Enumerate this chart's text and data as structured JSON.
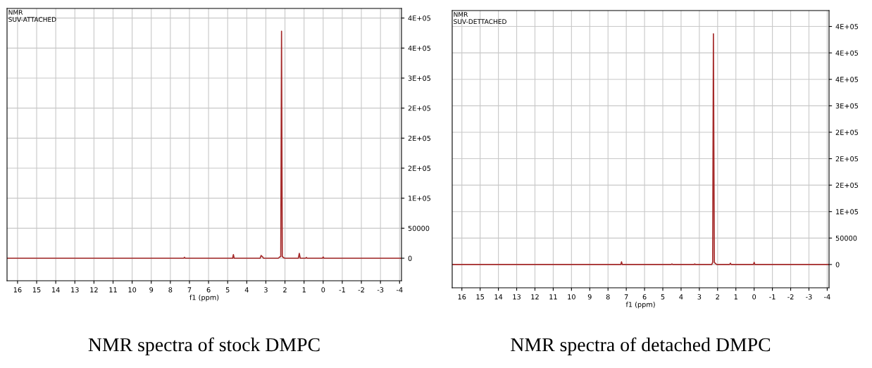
{
  "chart_data": [
    {
      "type": "line",
      "title": "NMR",
      "subtitle": "SUV-ATTACHED",
      "xlabel": "f1 (ppm)",
      "annotations": [
        "NMR spectra of stock DMPC"
      ],
      "series": [
        {
          "color": "#a52a2a",
          "x": [
            16.55,
            7.3,
            7.26,
            7.22,
            4.74,
            4.7,
            4.66,
            3.3,
            3.25,
            3.18,
            3.12,
            2.35,
            2.28,
            2.22,
            2.18,
            2.14,
            2.08,
            2.0,
            1.3,
            1.25,
            1.2,
            0.92,
            0.88,
            0.84,
            0.04,
            0.0,
            -0.04,
            -4.1
          ],
          "values": [
            0,
            0,
            1500,
            0,
            0,
            6000,
            0,
            0,
            4500,
            2500,
            0,
            0,
            2000,
            3000,
            378000,
            3000,
            1000,
            0,
            0,
            8000,
            0,
            0,
            1200,
            0,
            0,
            2000,
            0,
            0
          ]
        }
      ],
      "xlim": [
        16.55,
        -4.1
      ],
      "xticks": [
        16,
        15,
        14,
        13,
        12,
        11,
        10,
        9,
        8,
        7,
        6,
        5,
        4,
        3,
        2,
        1,
        0,
        -1,
        -2,
        -3,
        -4
      ],
      "ylim": [
        -37500,
        416000
      ],
      "yticks": [
        0,
        {
          "value": 50000,
          "label": "50000"
        },
        {
          "value": 100000,
          "label": "1E+05"
        },
        {
          "value": 150000,
          "label": "2E+05"
        },
        {
          "value": 200000,
          "label": "2E+05"
        },
        {
          "value": 250000,
          "label": "2E+05"
        },
        {
          "value": 300000,
          "label": "3E+05"
        },
        {
          "value": 350000,
          "label": "4E+05"
        },
        {
          "value": 400000,
          "label": "4E+05"
        }
      ],
      "grid": true,
      "marker": "none",
      "line_style": "solid"
    },
    {
      "type": "line",
      "title": "NMR",
      "subtitle": "SUV-DETTACHED",
      "xlabel": "f1 (ppm)",
      "annotations": [
        "NMR spectra of detached DMPC"
      ],
      "series": [
        {
          "color": "#a52a2a",
          "x": [
            16.53,
            7.3,
            7.26,
            7.22,
            4.54,
            4.5,
            4.46,
            3.28,
            3.25,
            3.22,
            2.32,
            2.27,
            2.23,
            2.18,
            2.1,
            2.05,
            1.34,
            1.3,
            1.26,
            0.04,
            0.0,
            -0.04,
            -4.1
          ],
          "values": [
            0,
            0,
            5000,
            0,
            0,
            1200,
            0,
            0,
            1200,
            0,
            0,
            4000,
            436000,
            4000,
            1500,
            0,
            0,
            2500,
            0,
            0,
            4000,
            0,
            0
          ]
        }
      ],
      "xlim": [
        16.53,
        -4.1
      ],
      "xticks": [
        16,
        15,
        14,
        13,
        12,
        11,
        10,
        9,
        8,
        7,
        6,
        5,
        4,
        3,
        2,
        1,
        0,
        -1,
        -2,
        -3,
        -4
      ],
      "ylim": [
        -44000,
        480000
      ],
      "yticks": [
        0,
        {
          "value": 50000,
          "label": "50000"
        },
        {
          "value": 100000,
          "label": "1E+05"
        },
        {
          "value": 150000,
          "label": "2E+05"
        },
        {
          "value": 200000,
          "label": "2E+05"
        },
        {
          "value": 250000,
          "label": "2E+05"
        },
        {
          "value": 300000,
          "label": "3E+05"
        },
        {
          "value": 350000,
          "label": "4E+05"
        },
        {
          "value": 400000,
          "label": "4E+05"
        },
        {
          "value": 450000,
          "label": "4E+05"
        }
      ],
      "grid": true,
      "marker": "none",
      "line_style": "solid"
    }
  ]
}
